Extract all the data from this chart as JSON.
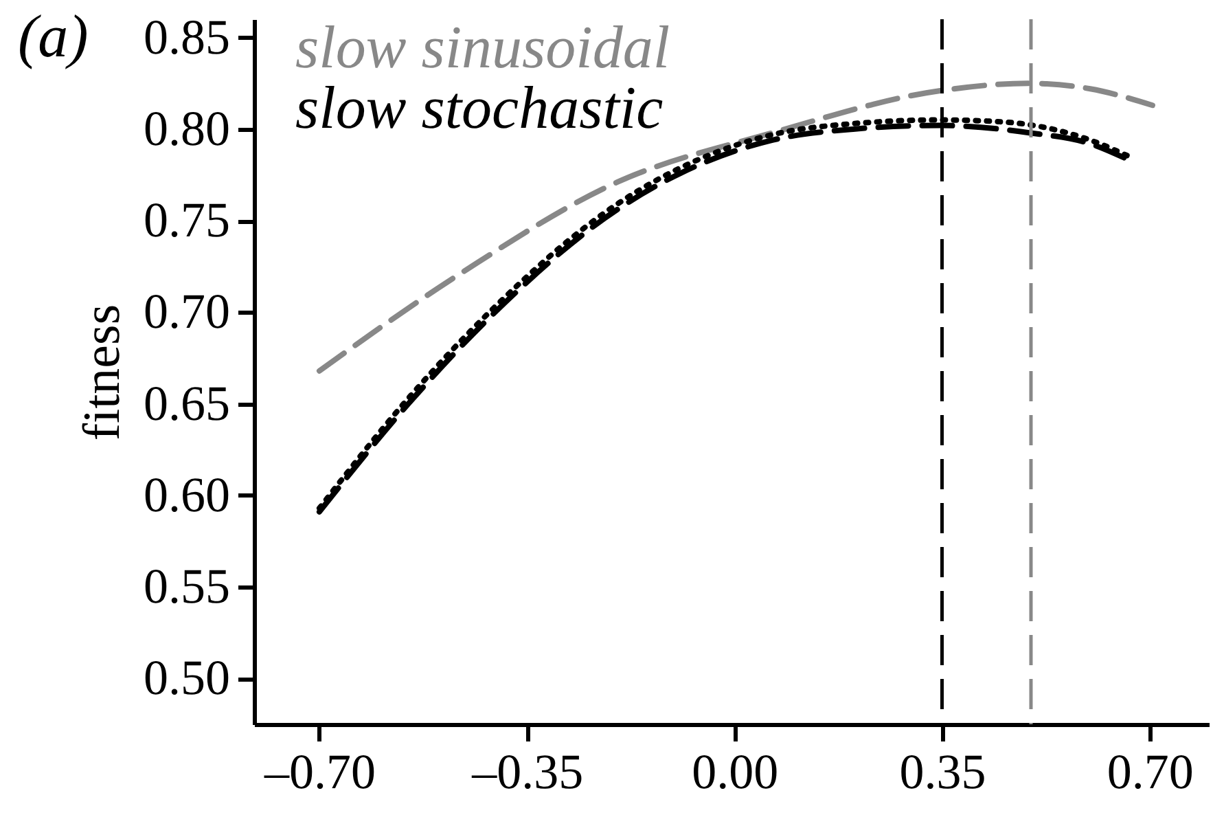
{
  "chart_data": {
    "type": "line",
    "ylabel": "fitness",
    "annotations": [
      "(a)"
    ],
    "xlim": [
      -0.81,
      0.8
    ],
    "ylim": [
      0.475,
      0.86
    ],
    "xticks": [
      {
        "value": -0.7,
        "label": "–0.70"
      },
      {
        "value": -0.35,
        "label": "–0.35"
      },
      {
        "value": 0,
        "label": "0.00"
      },
      0.35,
      {
        "value": 0.7,
        "label": "0.70"
      }
    ],
    "yticks": [
      {
        "value": 0.5,
        "label": "0.50"
      },
      0.55,
      {
        "value": 0.6,
        "label": "0.60"
      },
      0.65,
      {
        "value": 0.7,
        "label": "0.70"
      },
      0.75,
      {
        "value": 0.8,
        "label": "0.80"
      },
      0.85
    ],
    "grid": false,
    "legend": "top left",
    "marker": "none",
    "series": [
      {
        "name": "slow sinusoidal",
        "color": "#888888",
        "line_style": "dashed",
        "x": [
          -0.7,
          -0.458,
          -0.198,
          0.064,
          0.347,
          0.497,
          0.6,
          0.705
        ],
        "values": [
          0.668,
          0.722,
          0.771,
          0.798,
          0.821,
          0.825,
          0.822,
          0.813
        ]
      },
      {
        "name": "slow stochastic",
        "color": "#000000",
        "line_style": "dashed",
        "x": [
          -0.7,
          -0.55,
          -0.407,
          -0.198,
          0.064,
          0.2,
          0.345,
          0.497,
          0.6,
          0.666
        ],
        "values": [
          0.591,
          0.65,
          0.699,
          0.756,
          0.794,
          0.8,
          0.802,
          0.798,
          0.792,
          0.783
        ]
      },
      {
        "color": "#000000",
        "line_style": "dotted",
        "x": [
          -0.7,
          -0.55,
          -0.407,
          -0.198,
          0.064,
          0.2,
          0.345,
          0.45,
          0.6,
          0.666
        ],
        "values": [
          0.593,
          0.653,
          0.702,
          0.759,
          0.797,
          0.803,
          0.805,
          0.804,
          0.794,
          0.785
        ]
      }
    ],
    "ref_lines": [
      {
        "axis": "x",
        "value": 0.35,
        "color": "#000000",
        "line_style": "dashed"
      },
      {
        "axis": "x",
        "value": 0.5,
        "color": "#888888",
        "line_style": "dashed"
      }
    ]
  }
}
